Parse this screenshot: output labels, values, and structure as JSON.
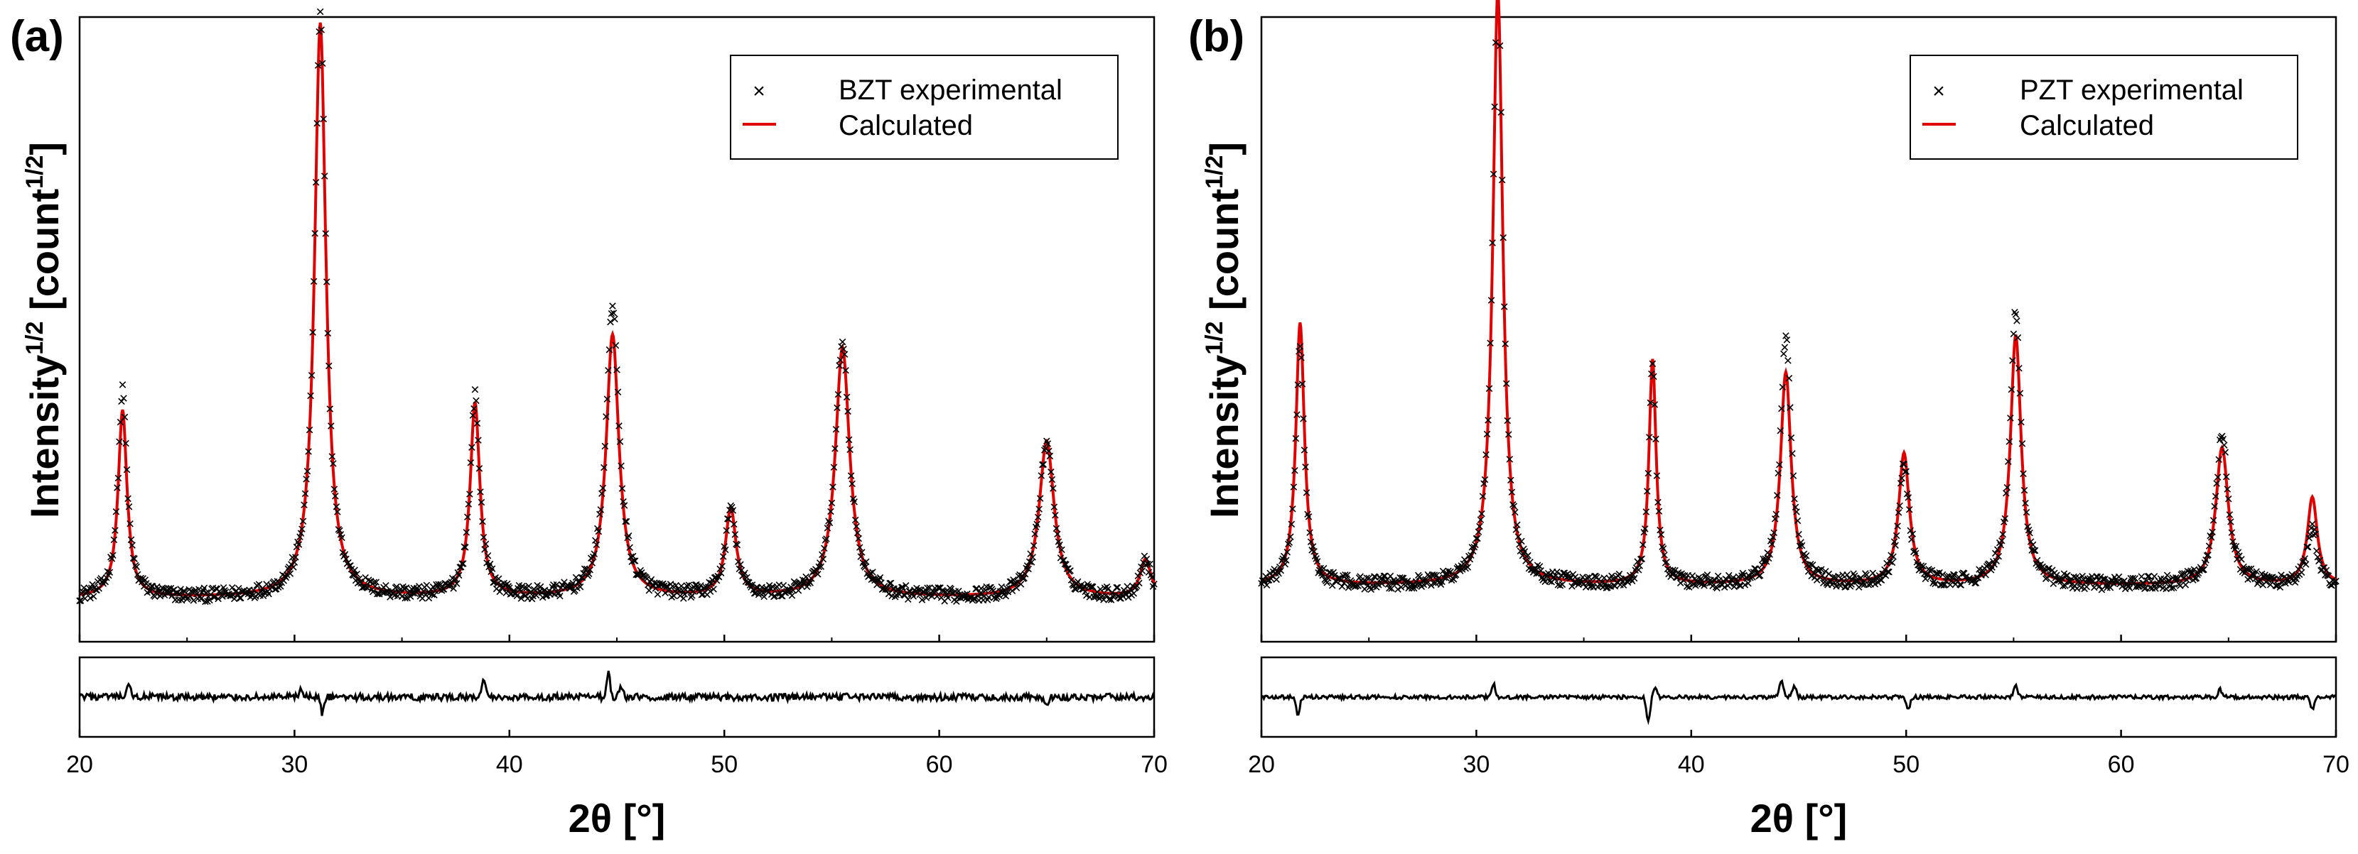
{
  "chart_data": [
    {
      "type": "line",
      "panel_label": "(a)",
      "xlabel": "2θ [°]",
      "ylabel": "Intensity",
      "ylabel_sup": "1/2",
      "ylabel_unit": "[count",
      "ylabel_unit_sup": "1/2",
      "ylabel_close": "]",
      "xlim": [
        20,
        70
      ],
      "xticks": [
        20,
        30,
        40,
        50,
        60,
        70
      ],
      "xtick_labels": [
        "20",
        "30",
        "40",
        "50",
        "60",
        "70"
      ],
      "ylim": [
        0,
        1
      ],
      "y_axis_scale": "arbitrary (no tick labels)",
      "legend_position": "top-right",
      "background": 0.07,
      "series": [
        {
          "name": "BZT experimental",
          "style": "markers",
          "marker": "x",
          "color": "#000000"
        },
        {
          "name": "Calculated",
          "style": "line",
          "color": "#e00000"
        }
      ],
      "peaks": [
        {
          "x": 22.0,
          "height": 0.3,
          "width": 0.25,
          "exp_offset": 0.03
        },
        {
          "x": 31.2,
          "height": 0.92,
          "width": 0.32,
          "exp_offset": 0.01
        },
        {
          "x": 38.4,
          "height": 0.31,
          "width": 0.27,
          "exp_offset": 0.01
        },
        {
          "x": 44.8,
          "height": 0.42,
          "width": 0.36,
          "exp_offset": 0.05
        },
        {
          "x": 50.3,
          "height": 0.14,
          "width": 0.3,
          "exp_offset": 0.0
        },
        {
          "x": 55.5,
          "height": 0.4,
          "width": 0.4,
          "exp_offset": 0.01
        },
        {
          "x": 65.0,
          "height": 0.25,
          "width": 0.42,
          "exp_offset": 0.0
        },
        {
          "x": 69.6,
          "height": 0.06,
          "width": 0.3,
          "exp_offset": 0.0
        }
      ],
      "residual_spikes": [
        {
          "x": 22.3,
          "amp": 0.35
        },
        {
          "x": 30.3,
          "amp": 0.25
        },
        {
          "x": 31.3,
          "amp": -0.5
        },
        {
          "x": 38.8,
          "amp": 0.5
        },
        {
          "x": 44.6,
          "amp": 0.75
        },
        {
          "x": 45.2,
          "amp": 0.3
        },
        {
          "x": 55.7,
          "amp": 0.2
        },
        {
          "x": 65.0,
          "amp": -0.2
        }
      ],
      "residual_noise": 0.22
    },
    {
      "type": "line",
      "panel_label": "(b)",
      "xlabel": "2θ [°]",
      "ylabel": "Intensity",
      "ylabel_sup": "1/2",
      "ylabel_unit": "[count",
      "ylabel_unit_sup": "1/2",
      "ylabel_close": "]",
      "xlim": [
        20,
        70
      ],
      "xticks": [
        20,
        30,
        40,
        50,
        60,
        70
      ],
      "xtick_labels": [
        "20",
        "30",
        "40",
        "50",
        "60",
        "70"
      ],
      "ylim": [
        0,
        1
      ],
      "y_axis_scale": "arbitrary (no tick labels)",
      "legend_position": "top-right",
      "background": 0.09,
      "series": [
        {
          "name": "PZT experimental",
          "style": "markers",
          "marker": "x",
          "color": "#000000"
        },
        {
          "name": "Calculated",
          "style": "line",
          "color": "#e00000"
        }
      ],
      "peaks": [
        {
          "x": 21.8,
          "height": 0.42,
          "width": 0.24,
          "exp_offset": -0.04
        },
        {
          "x": 31.0,
          "height": 0.95,
          "width": 0.28,
          "exp_offset": 0.03
        },
        {
          "x": 38.2,
          "height": 0.36,
          "width": 0.2,
          "exp_offset": 0.0
        },
        {
          "x": 44.4,
          "height": 0.34,
          "width": 0.3,
          "exp_offset": 0.06
        },
        {
          "x": 49.9,
          "height": 0.21,
          "width": 0.3,
          "exp_offset": -0.02
        },
        {
          "x": 55.1,
          "height": 0.4,
          "width": 0.3,
          "exp_offset": 0.04
        },
        {
          "x": 64.7,
          "height": 0.22,
          "width": 0.35,
          "exp_offset": 0.02
        },
        {
          "x": 68.9,
          "height": 0.14,
          "width": 0.28,
          "exp_offset": -0.05
        }
      ],
      "residual_spikes": [
        {
          "x": 21.7,
          "amp": -0.6
        },
        {
          "x": 30.8,
          "amp": 0.4
        },
        {
          "x": 38.0,
          "amp": -0.8
        },
        {
          "x": 38.3,
          "amp": 0.3
        },
        {
          "x": 44.2,
          "amp": 0.55
        },
        {
          "x": 44.8,
          "amp": 0.35
        },
        {
          "x": 50.1,
          "amp": -0.4
        },
        {
          "x": 55.1,
          "amp": 0.35
        },
        {
          "x": 64.6,
          "amp": 0.25
        },
        {
          "x": 68.9,
          "amp": -0.4
        }
      ],
      "residual_noise": 0.12
    }
  ]
}
